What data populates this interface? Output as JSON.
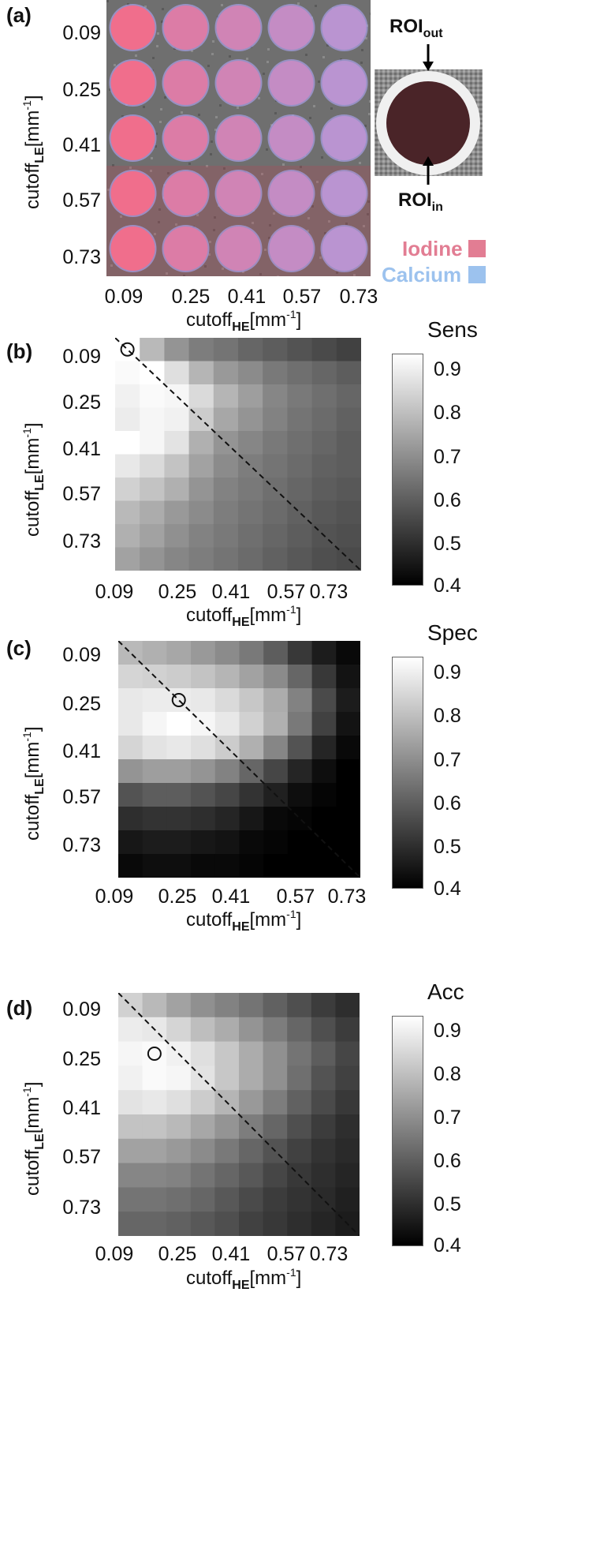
{
  "chart_data": [
    {
      "panel": "(a)",
      "type": "image-grid",
      "y_ticks": [
        "0.09",
        "0.25",
        "0.41",
        "0.57",
        "0.73"
      ],
      "x_ticks": [
        "0.09",
        "0.25",
        "0.41",
        "0.57",
        "0.73"
      ],
      "ylabel_main": "cutoff",
      "ylabel_sub": "LE",
      "ylabel_unit": "[mm",
      "ylabel_sup": "-1",
      "ylabel_end": "]",
      "xlabel_main": "cutoff",
      "xlabel_sub": "HE",
      "xlabel_unit": "[mm",
      "xlabel_sup": "-1",
      "xlabel_end": "]",
      "roi_out_main": "ROI",
      "roi_out_sub": "out",
      "roi_in_main": "ROI",
      "roi_in_sub": "in",
      "legend": [
        {
          "label": "Iodine",
          "color": "#e27d93"
        },
        {
          "label": "Calcium",
          "color": "#9cc2ee"
        }
      ],
      "iodine_color": "#f06e8c",
      "calcium_color": "#a8a0e8"
    },
    {
      "panel": "(b)",
      "type": "heatmap",
      "colorbar_title": "Sens",
      "colorbar_ticks": [
        "0.9",
        "0.8",
        "0.7",
        "0.6",
        "0.5",
        "0.4"
      ],
      "vmin": 0.4,
      "vmax": 0.95,
      "y_ticks": [
        "0.09",
        "0.25",
        "0.41",
        "0.57",
        "0.73"
      ],
      "x_ticks": [
        "0.09",
        "0.25",
        "0.41",
        "0.57",
        "0.73"
      ],
      "ylabel_main": "cutoff",
      "ylabel_sub": "LE",
      "ylabel_unit": "[mm",
      "ylabel_sup": "-1",
      "ylabel_end": "]",
      "xlabel_main": "cutoff",
      "xlabel_sub": "HE",
      "xlabel_unit": "[mm",
      "xlabel_sup": "-1",
      "xlabel_end": "]",
      "marker": {
        "row": 0,
        "col": 0
      },
      "values": [
        [
          0.95,
          0.8,
          0.72,
          0.67,
          0.65,
          0.62,
          0.6,
          0.58,
          0.56,
          0.54
        ],
        [
          0.94,
          0.95,
          0.88,
          0.79,
          0.73,
          0.7,
          0.66,
          0.64,
          0.62,
          0.6
        ],
        [
          0.92,
          0.94,
          0.93,
          0.87,
          0.79,
          0.74,
          0.69,
          0.66,
          0.64,
          0.62
        ],
        [
          0.91,
          0.93,
          0.92,
          0.84,
          0.76,
          0.72,
          0.68,
          0.65,
          0.63,
          0.61
        ],
        [
          0.95,
          0.93,
          0.89,
          0.78,
          0.72,
          0.69,
          0.66,
          0.64,
          0.62,
          0.6
        ],
        [
          0.9,
          0.87,
          0.82,
          0.75,
          0.7,
          0.67,
          0.65,
          0.63,
          0.61,
          0.6
        ],
        [
          0.85,
          0.82,
          0.78,
          0.72,
          0.68,
          0.66,
          0.64,
          0.62,
          0.6,
          0.59
        ],
        [
          0.8,
          0.77,
          0.73,
          0.7,
          0.67,
          0.65,
          0.63,
          0.61,
          0.59,
          0.58
        ],
        [
          0.78,
          0.75,
          0.71,
          0.68,
          0.66,
          0.64,
          0.62,
          0.6,
          0.58,
          0.57
        ],
        [
          0.75,
          0.72,
          0.69,
          0.67,
          0.65,
          0.63,
          0.61,
          0.59,
          0.57,
          0.56
        ]
      ]
    },
    {
      "panel": "(c)",
      "type": "heatmap",
      "colorbar_title": "Spec",
      "colorbar_ticks": [
        "0.9",
        "0.8",
        "0.7",
        "0.6",
        "0.5",
        "0.4"
      ],
      "vmin": 0.4,
      "vmax": 0.95,
      "y_ticks": [
        "0.09",
        "0.25",
        "0.41",
        "0.57",
        "0.73"
      ],
      "x_ticks": [
        "0.09",
        "0.25",
        "0.41",
        "0.57",
        "0.73"
      ],
      "ylabel_main": "cutoff",
      "ylabel_sub": "LE",
      "ylabel_unit": "[mm",
      "ylabel_sup": "-1",
      "ylabel_end": "]",
      "xlabel_main": "cutoff",
      "xlabel_sub": "HE",
      "xlabel_unit": "[mm",
      "xlabel_sup": "-1",
      "xlabel_end": "]",
      "marker": {
        "row": 2,
        "col": 2
      },
      "values": [
        [
          0.8,
          0.78,
          0.76,
          0.73,
          0.7,
          0.66,
          0.6,
          0.52,
          0.46,
          0.42
        ],
        [
          0.86,
          0.85,
          0.84,
          0.82,
          0.79,
          0.75,
          0.7,
          0.62,
          0.52,
          0.44
        ],
        [
          0.9,
          0.91,
          0.91,
          0.9,
          0.87,
          0.83,
          0.77,
          0.68,
          0.56,
          0.46
        ],
        [
          0.9,
          0.93,
          0.95,
          0.93,
          0.9,
          0.85,
          0.78,
          0.66,
          0.54,
          0.44
        ],
        [
          0.86,
          0.89,
          0.9,
          0.88,
          0.84,
          0.78,
          0.69,
          0.58,
          0.48,
          0.42
        ],
        [
          0.72,
          0.74,
          0.74,
          0.72,
          0.68,
          0.62,
          0.55,
          0.48,
          0.43,
          0.4
        ],
        [
          0.58,
          0.6,
          0.6,
          0.58,
          0.55,
          0.51,
          0.47,
          0.43,
          0.41,
          0.4
        ],
        [
          0.5,
          0.51,
          0.51,
          0.5,
          0.48,
          0.45,
          0.42,
          0.41,
          0.4,
          0.4
        ],
        [
          0.45,
          0.46,
          0.46,
          0.45,
          0.44,
          0.42,
          0.41,
          0.4,
          0.4,
          0.4
        ],
        [
          0.42,
          0.43,
          0.43,
          0.42,
          0.42,
          0.41,
          0.4,
          0.4,
          0.4,
          0.4
        ]
      ]
    },
    {
      "panel": "(d)",
      "type": "heatmap",
      "colorbar_title": "Acc",
      "colorbar_ticks": [
        "0.9",
        "0.8",
        "0.7",
        "0.6",
        "0.5",
        "0.4"
      ],
      "vmin": 0.4,
      "vmax": 0.95,
      "y_ticks": [
        "0.09",
        "0.25",
        "0.41",
        "0.57",
        "0.73"
      ],
      "x_ticks": [
        "0.09",
        "0.25",
        "0.41",
        "0.57",
        "0.73"
      ],
      "ylabel_main": "cutoff",
      "ylabel_sub": "LE",
      "ylabel_unit": "[mm",
      "ylabel_sup": "-1",
      "ylabel_end": "]",
      "xlabel_main": "cutoff",
      "xlabel_sub": "HE",
      "xlabel_unit": "[mm",
      "xlabel_sup": "-1",
      "xlabel_end": "]",
      "marker": {
        "row": 2,
        "col": 1
      },
      "values": [
        [
          0.85,
          0.8,
          0.75,
          0.71,
          0.68,
          0.65,
          0.61,
          0.57,
          0.53,
          0.5
        ],
        [
          0.91,
          0.9,
          0.86,
          0.81,
          0.77,
          0.72,
          0.67,
          0.62,
          0.57,
          0.53
        ],
        [
          0.93,
          0.94,
          0.92,
          0.88,
          0.83,
          0.77,
          0.71,
          0.65,
          0.6,
          0.55
        ],
        [
          0.92,
          0.94,
          0.93,
          0.89,
          0.83,
          0.77,
          0.71,
          0.64,
          0.58,
          0.54
        ],
        [
          0.89,
          0.9,
          0.88,
          0.84,
          0.79,
          0.73,
          0.67,
          0.61,
          0.56,
          0.52
        ],
        [
          0.82,
          0.82,
          0.8,
          0.76,
          0.72,
          0.67,
          0.62,
          0.57,
          0.53,
          0.5
        ],
        [
          0.75,
          0.75,
          0.73,
          0.7,
          0.66,
          0.62,
          0.58,
          0.54,
          0.51,
          0.49
        ],
        [
          0.69,
          0.69,
          0.68,
          0.65,
          0.62,
          0.59,
          0.55,
          0.52,
          0.5,
          0.48
        ],
        [
          0.65,
          0.65,
          0.64,
          0.62,
          0.59,
          0.56,
          0.53,
          0.51,
          0.49,
          0.47
        ],
        [
          0.62,
          0.62,
          0.61,
          0.59,
          0.57,
          0.54,
          0.52,
          0.5,
          0.48,
          0.46
        ]
      ]
    }
  ]
}
